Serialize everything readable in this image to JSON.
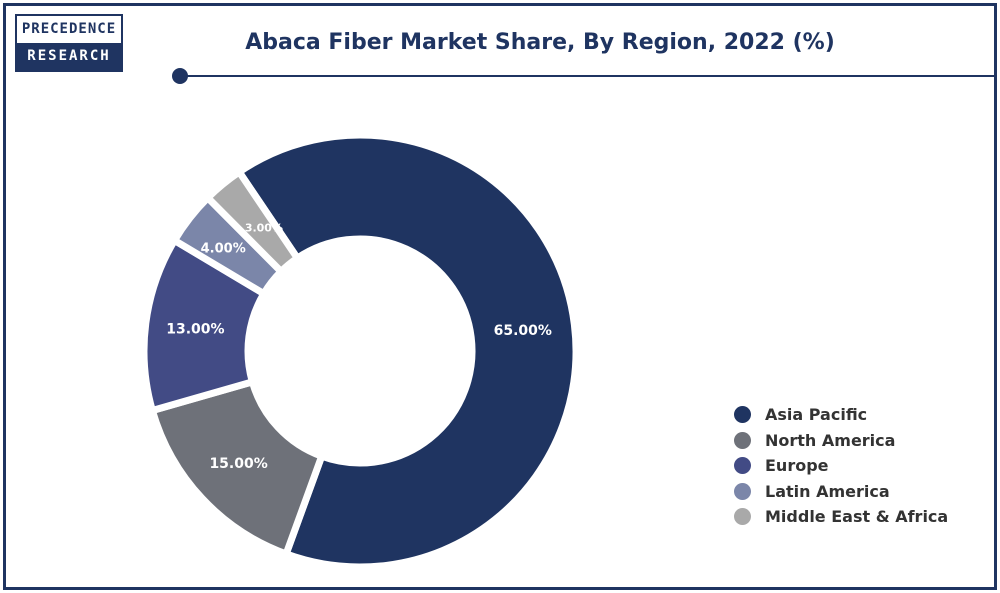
{
  "logo": {
    "line1": "PRECEDENCE",
    "line2": "RESEARCH"
  },
  "chart_data": {
    "type": "pie",
    "donut": true,
    "title": "Abaca Fiber Market Share, By Region, 2022 (%)",
    "categories": [
      "Asia Pacific",
      "North America",
      "Europe",
      "Latin America",
      "Middle East & Africa"
    ],
    "values": [
      65.0,
      15.0,
      13.0,
      4.0,
      3.0
    ],
    "labels": [
      "65.00%",
      "15.00%",
      "13.00%",
      "4.00%",
      "3.00%"
    ],
    "colors": [
      "#1f3461",
      "#6e7179",
      "#424b85",
      "#7b86a9",
      "#a9a9a9"
    ],
    "legend_position": "right"
  }
}
